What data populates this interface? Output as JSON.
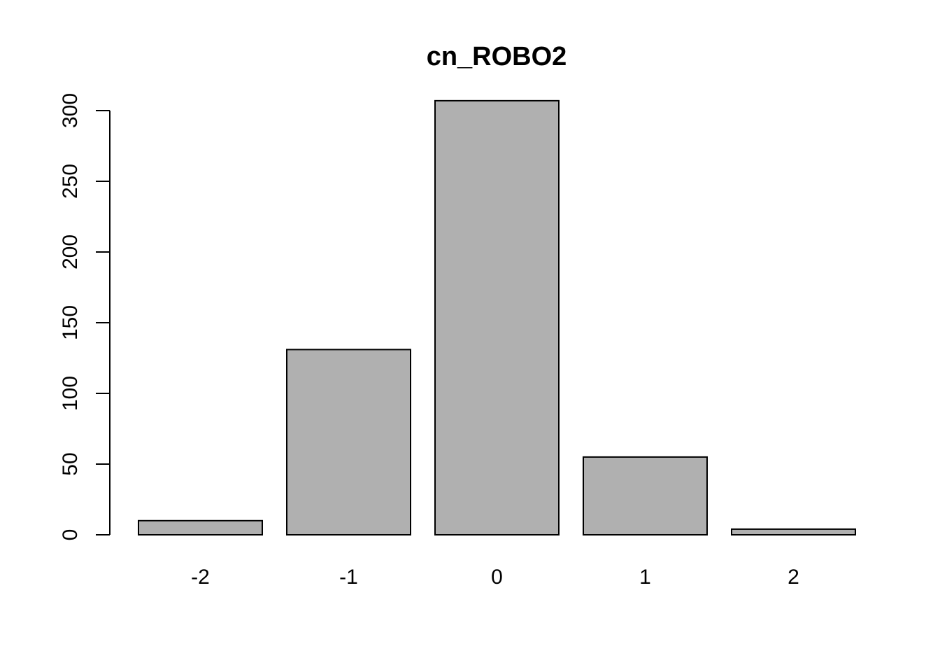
{
  "chart_data": {
    "type": "bar",
    "title": "cn_ROBO2",
    "xlabel": "",
    "ylabel": "",
    "categories": [
      "-2",
      "-1",
      "0",
      "1",
      "2"
    ],
    "values": [
      10,
      131,
      307,
      55,
      4
    ],
    "ylim": [
      0,
      300
    ],
    "y_ticks": [
      "0",
      "50",
      "100",
      "150",
      "200",
      "250",
      "300"
    ],
    "grid": false,
    "legend": "none",
    "bar_color": "#b0b0b0",
    "border_color": "#000000"
  }
}
